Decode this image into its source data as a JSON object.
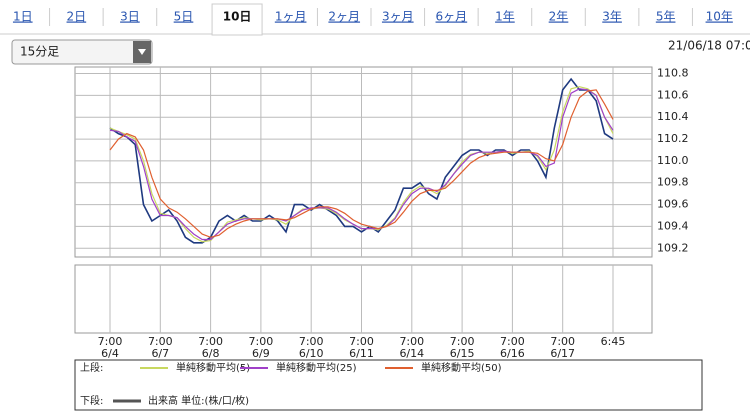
{
  "tabs": [
    {
      "label": "1日"
    },
    {
      "label": "2日"
    },
    {
      "label": "3日"
    },
    {
      "label": "5日"
    },
    {
      "label": "10日",
      "selected": true
    },
    {
      "label": "1ヶ月"
    },
    {
      "label": "2ヶ月"
    },
    {
      "label": "3ヶ月"
    },
    {
      "label": "6ヶ月"
    },
    {
      "label": "1年"
    },
    {
      "label": "2年"
    },
    {
      "label": "3年"
    },
    {
      "label": "5年"
    },
    {
      "label": "10年"
    }
  ],
  "interval_select": "15分足",
  "timestamp": "21/06/18 07:0",
  "chart_data": {
    "type": "line",
    "categories": [
      "7:00",
      null,
      null,
      null,
      null,
      null,
      "7:00",
      null,
      null,
      null,
      null,
      null,
      "7:00",
      null,
      null,
      null,
      null,
      null,
      "7:00",
      null,
      null,
      null,
      null,
      null,
      "7:00",
      null,
      null,
      null,
      null,
      null,
      "7:00",
      null,
      null,
      null,
      null,
      null,
      "7:00",
      null,
      null,
      null,
      null,
      null,
      "7:00",
      null,
      null,
      null,
      null,
      null,
      "7:00",
      null,
      null,
      null,
      null,
      null,
      "7:00",
      null,
      null,
      null,
      null,
      null,
      "6:45"
    ],
    "category_dates": [
      "6/4",
      null,
      null,
      null,
      null,
      null,
      "6/7",
      null,
      null,
      null,
      null,
      null,
      "6/8",
      null,
      null,
      null,
      null,
      null,
      "6/9",
      null,
      null,
      null,
      null,
      null,
      "6/10",
      null,
      null,
      null,
      null,
      null,
      "6/11",
      null,
      null,
      null,
      null,
      null,
      "6/14",
      null,
      null,
      null,
      null,
      null,
      "6/15",
      null,
      null,
      null,
      null,
      null,
      "6/16",
      null,
      null,
      null,
      null,
      null,
      "6/17",
      null,
      null,
      null,
      null,
      null,
      null
    ],
    "ylim": [
      109.12,
      110.86
    ],
    "yticks": [
      109.2,
      109.4,
      109.6,
      109.8,
      {
        "value": 110,
        "label": "110.0"
      },
      110.2,
      110.4,
      110.6,
      110.8
    ],
    "grid": true,
    "upper_legend_label": "上段:",
    "series": [
      {
        "color": "#1f3a80",
        "values": [
          110.3,
          110.25,
          110.22,
          110.15,
          109.6,
          109.45,
          109.5,
          109.55,
          109.45,
          109.3,
          109.25,
          109.25,
          109.3,
          109.45,
          109.5,
          109.45,
          109.5,
          109.45,
          109.45,
          109.5,
          109.45,
          109.35,
          109.6,
          109.6,
          109.55,
          109.6,
          109.55,
          109.5,
          109.4,
          109.4,
          109.35,
          109.4,
          109.35,
          109.45,
          109.55,
          109.75,
          109.75,
          109.8,
          109.7,
          109.65,
          109.85,
          109.95,
          110.05,
          110.1,
          110.1,
          110.05,
          110.1,
          110.1,
          110.05,
          110.1,
          110.1,
          110.0,
          109.85,
          110.3,
          110.65,
          110.75,
          110.65,
          110.65,
          110.55,
          110.25,
          110.2
        ]
      },
      {
        "name": "単純移動平均(5)",
        "color": "#c8d860",
        "values": [
          110.3,
          110.27,
          110.24,
          110.2,
          110.0,
          109.7,
          109.52,
          109.5,
          109.48,
          109.38,
          109.3,
          109.26,
          109.27,
          109.35,
          109.44,
          109.46,
          109.48,
          109.47,
          109.46,
          109.47,
          109.46,
          109.42,
          109.5,
          109.56,
          109.56,
          109.57,
          109.56,
          109.52,
          109.46,
          109.42,
          109.38,
          109.38,
          109.37,
          109.41,
          109.48,
          109.62,
          109.72,
          109.77,
          109.74,
          109.7,
          109.77,
          109.88,
          109.99,
          110.06,
          110.08,
          110.07,
          110.08,
          110.09,
          110.07,
          110.08,
          110.09,
          110.04,
          109.92,
          110.1,
          110.45,
          110.66,
          110.68,
          110.66,
          110.6,
          110.4,
          110.25
        ]
      },
      {
        "name": "単純移動平均(25)",
        "color": "#a040c8",
        "values": [
          110.28,
          110.27,
          110.22,
          110.18,
          109.95,
          109.65,
          109.5,
          109.5,
          109.48,
          109.4,
          109.33,
          109.28,
          109.28,
          109.35,
          109.42,
          109.45,
          109.47,
          109.47,
          109.47,
          109.47,
          109.47,
          109.45,
          109.5,
          109.55,
          109.57,
          109.57,
          109.57,
          109.53,
          109.47,
          109.42,
          109.38,
          109.38,
          109.38,
          109.4,
          109.47,
          109.6,
          109.7,
          109.75,
          109.75,
          109.72,
          109.78,
          109.88,
          109.97,
          110.05,
          110.08,
          110.08,
          110.08,
          110.09,
          110.08,
          110.08,
          110.08,
          110.05,
          109.95,
          109.98,
          110.4,
          110.62,
          110.66,
          110.65,
          110.6,
          110.4,
          110.28
        ]
      },
      {
        "name": "単純移動平均(50)",
        "color": "#e06030",
        "values": [
          110.1,
          110.2,
          110.25,
          110.22,
          110.1,
          109.85,
          109.65,
          109.57,
          109.53,
          109.47,
          109.4,
          109.33,
          109.3,
          109.32,
          109.38,
          109.42,
          109.45,
          109.47,
          109.47,
          109.47,
          109.47,
          109.46,
          109.48,
          109.52,
          109.56,
          109.58,
          109.58,
          109.56,
          109.52,
          109.46,
          109.42,
          109.4,
          109.38,
          109.4,
          109.44,
          109.53,
          109.63,
          109.7,
          109.73,
          109.73,
          109.75,
          109.82,
          109.9,
          109.98,
          110.03,
          110.06,
          110.07,
          110.08,
          110.08,
          110.08,
          110.08,
          110.07,
          110.02,
          110.0,
          110.15,
          110.4,
          110.58,
          110.64,
          110.65,
          110.52,
          110.38
        ]
      }
    ],
    "lower_legend_label": "下段:",
    "volume_legend": {
      "name": "出来高 単位:(株/口/枚)",
      "color": "#555555"
    }
  }
}
